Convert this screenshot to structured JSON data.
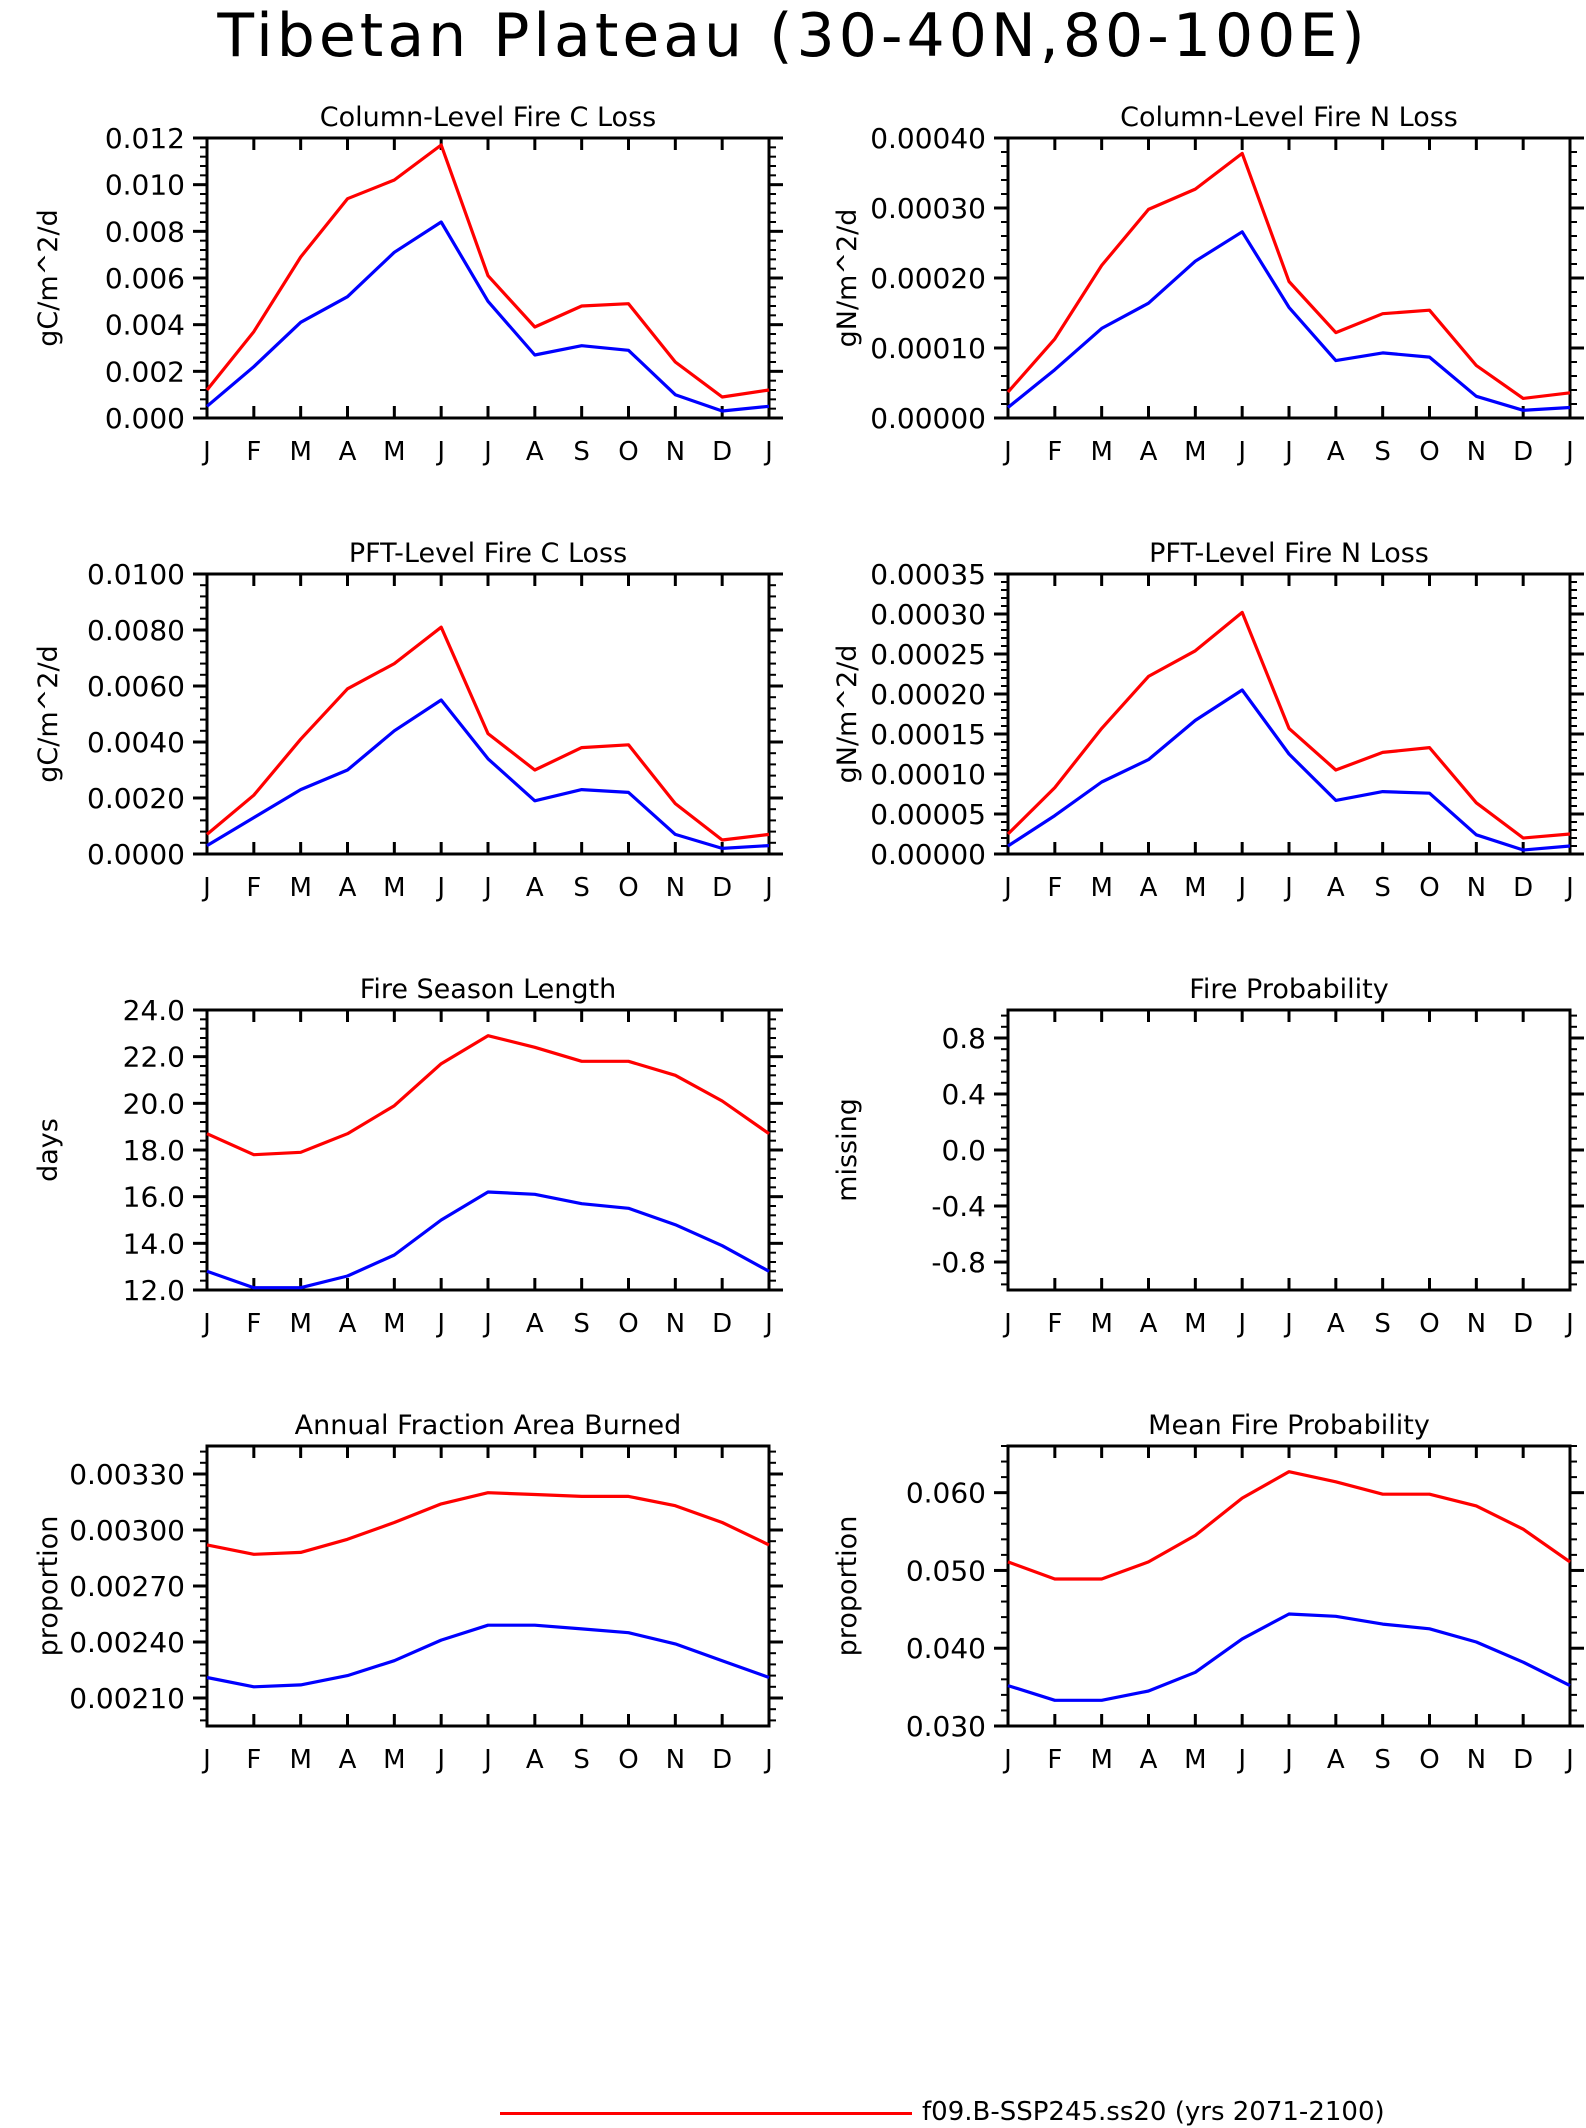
{
  "page_title": "Tibetan Plateau (30-40N,80-100E)",
  "colors": {
    "series_ssp245": "#ff0000",
    "series_second": "#0000ff",
    "axes": "#000000"
  },
  "legend": {
    "entries": [
      {
        "label": "f09.B-SSP245.ss20 (yrs 2071-2100)",
        "color": "#ff0000"
      }
    ]
  },
  "chart_data": [
    {
      "type": "line",
      "title": "Column-Level Fire C Loss",
      "ylabel": "gC/m^2/d",
      "categories": [
        "J",
        "F",
        "M",
        "A",
        "M",
        "J",
        "J",
        "A",
        "S",
        "O",
        "N",
        "D",
        "J"
      ],
      "ylim": [
        0,
        0.012
      ],
      "yticks": [
        "0.000",
        "0.002",
        "0.004",
        "0.006",
        "0.008",
        "0.010",
        "0.012"
      ],
      "yticks_values": [
        0,
        0.002,
        0.004,
        0.006,
        0.008,
        0.01,
        0.012
      ],
      "series": [
        {
          "color": "#ff0000",
          "values": [
            0.0012,
            0.0037,
            0.0069,
            0.0094,
            0.0102,
            0.0117,
            0.0061,
            0.0039,
            0.0048,
            0.0049,
            0.0024,
            0.0009,
            0.0012
          ]
        },
        {
          "color": "#0000ff",
          "values": [
            0.0005,
            0.0022,
            0.0041,
            0.0052,
            0.0071,
            0.0084,
            0.005,
            0.0027,
            0.0031,
            0.0029,
            0.001,
            0.0003,
            0.0005
          ]
        }
      ]
    },
    {
      "type": "line",
      "title": "Column-Level Fire N Loss",
      "ylabel": "gN/m^2/d",
      "categories": [
        "J",
        "F",
        "M",
        "A",
        "M",
        "J",
        "J",
        "A",
        "S",
        "O",
        "N",
        "D",
        "J"
      ],
      "ylim": [
        0,
        0.0004
      ],
      "yticks": [
        "0.00000",
        "0.00010",
        "0.00020",
        "0.00030",
        "0.00040"
      ],
      "yticks_values": [
        0,
        0.0001,
        0.0002,
        0.0003,
        0.0004
      ],
      "series": [
        {
          "color": "#ff0000",
          "values": [
            3.7e-05,
            0.000113,
            0.000218,
            0.000298,
            0.000327,
            0.000378,
            0.000195,
            0.000122,
            0.000149,
            0.000154,
            7.5e-05,
            2.8e-05,
            3.6e-05
          ]
        },
        {
          "color": "#0000ff",
          "values": [
            1.5e-05,
            6.9e-05,
            0.000128,
            0.000164,
            0.000224,
            0.000266,
            0.000158,
            8.2e-05,
            9.3e-05,
            8.7e-05,
            3.1e-05,
            1.1e-05,
            1.5e-05
          ]
        }
      ]
    },
    {
      "type": "line",
      "title": "PFT-Level Fire C Loss",
      "ylabel": "gC/m^2/d",
      "categories": [
        "J",
        "F",
        "M",
        "A",
        "M",
        "J",
        "J",
        "A",
        "S",
        "O",
        "N",
        "D",
        "J"
      ],
      "ylim": [
        0,
        0.01
      ],
      "yticks": [
        "0.0000",
        "0.0020",
        "0.0040",
        "0.0060",
        "0.0080",
        "0.0100"
      ],
      "yticks_values": [
        0,
        0.002,
        0.004,
        0.006,
        0.008,
        0.01
      ],
      "series": [
        {
          "color": "#ff0000",
          "values": [
            0.0007,
            0.0021,
            0.0041,
            0.0059,
            0.0068,
            0.0081,
            0.0043,
            0.003,
            0.0038,
            0.0039,
            0.0018,
            0.0005,
            0.0007
          ]
        },
        {
          "color": "#0000ff",
          "values": [
            0.0003,
            0.0013,
            0.0023,
            0.003,
            0.0044,
            0.0055,
            0.0034,
            0.0019,
            0.0023,
            0.0022,
            0.0007,
            0.0002,
            0.0003
          ]
        }
      ]
    },
    {
      "type": "line",
      "title": "PFT-Level Fire N Loss",
      "ylabel": "gN/m^2/d",
      "categories": [
        "J",
        "F",
        "M",
        "A",
        "M",
        "J",
        "J",
        "A",
        "S",
        "O",
        "N",
        "D",
        "J"
      ],
      "ylim": [
        0,
        0.00035
      ],
      "yticks": [
        "0.00000",
        "0.00005",
        "0.00010",
        "0.00015",
        "0.00020",
        "0.00025",
        "0.00030",
        "0.00035"
      ],
      "yticks_values": [
        0,
        5e-05,
        0.0001,
        0.00015,
        0.0002,
        0.00025,
        0.0003,
        0.00035
      ],
      "series": [
        {
          "color": "#ff0000",
          "values": [
            2.5e-05,
            8.3e-05,
            0.000157,
            0.000222,
            0.000254,
            0.000302,
            0.000157,
            0.000105,
            0.000127,
            0.000133,
            6.4e-05,
            2e-05,
            2.5e-05
          ]
        },
        {
          "color": "#0000ff",
          "values": [
            1e-05,
            4.8e-05,
            9e-05,
            0.000118,
            0.000167,
            0.000205,
            0.000125,
            6.7e-05,
            7.8e-05,
            7.6e-05,
            2.4e-05,
            5e-06,
            1e-05
          ]
        }
      ]
    },
    {
      "type": "line",
      "title": "Fire Season Length",
      "ylabel": "days",
      "categories": [
        "J",
        "F",
        "M",
        "A",
        "M",
        "J",
        "J",
        "A",
        "S",
        "O",
        "N",
        "D",
        "J"
      ],
      "ylim": [
        12,
        24
      ],
      "yticks": [
        "12.0",
        "14.0",
        "16.0",
        "18.0",
        "20.0",
        "22.0",
        "24.0"
      ],
      "yticks_values": [
        12,
        14,
        16,
        18,
        20,
        22,
        24
      ],
      "series": [
        {
          "color": "#ff0000",
          "values": [
            18.7,
            17.8,
            17.9,
            18.7,
            19.9,
            21.7,
            22.9,
            22.4,
            21.8,
            21.8,
            21.2,
            20.1,
            18.7
          ]
        },
        {
          "color": "#0000ff",
          "values": [
            12.8,
            12.1,
            12.1,
            12.6,
            13.5,
            15.0,
            16.2,
            16.1,
            15.7,
            15.5,
            14.8,
            13.9,
            12.8
          ]
        }
      ]
    },
    {
      "type": "line",
      "title": "Fire Probability",
      "ylabel": "missing",
      "categories": [
        "J",
        "F",
        "M",
        "A",
        "M",
        "J",
        "J",
        "A",
        "S",
        "O",
        "N",
        "D",
        "J"
      ],
      "ylim": [
        -1,
        1
      ],
      "yticks": [
        "-0.8",
        "-0.4",
        "0.0",
        "0.4",
        "0.8"
      ],
      "yticks_values": [
        -0.8,
        -0.4,
        0.0,
        0.4,
        0.8
      ],
      "series": []
    },
    {
      "type": "line",
      "title": "Annual Fraction Area Burned",
      "ylabel": "proportion",
      "categories": [
        "J",
        "F",
        "M",
        "A",
        "M",
        "J",
        "J",
        "A",
        "S",
        "O",
        "N",
        "D",
        "J"
      ],
      "ylim": [
        0.00195,
        0.00345
      ],
      "yticks": [
        "0.00210",
        "0.00240",
        "0.00270",
        "0.00300",
        "0.00330"
      ],
      "yticks_values": [
        0.0021,
        0.0024,
        0.0027,
        0.003,
        0.0033
      ],
      "series": [
        {
          "color": "#ff0000",
          "values": [
            0.00292,
            0.00287,
            0.00288,
            0.00295,
            0.00304,
            0.00314,
            0.0032,
            0.00319,
            0.00318,
            0.00318,
            0.00313,
            0.00304,
            0.00292
          ]
        },
        {
          "color": "#0000ff",
          "values": [
            0.00221,
            0.00216,
            0.00217,
            0.00222,
            0.0023,
            0.00241,
            0.00249,
            0.00249,
            0.00247,
            0.00245,
            0.00239,
            0.0023,
            0.00221
          ]
        }
      ]
    },
    {
      "type": "line",
      "title": "Mean Fire Probability",
      "ylabel": "proportion",
      "categories": [
        "J",
        "F",
        "M",
        "A",
        "M",
        "J",
        "J",
        "A",
        "S",
        "O",
        "N",
        "D",
        "J"
      ],
      "ylim": [
        0.03,
        0.066
      ],
      "yticks": [
        "0.030",
        "0.040",
        "0.050",
        "0.060"
      ],
      "yticks_values": [
        0.03,
        0.04,
        0.05,
        0.06
      ],
      "series": [
        {
          "color": "#ff0000",
          "values": [
            0.0511,
            0.0489,
            0.0489,
            0.0511,
            0.0545,
            0.0593,
            0.0627,
            0.0614,
            0.0598,
            0.0598,
            0.0583,
            0.0553,
            0.0511
          ]
        },
        {
          "color": "#0000ff",
          "values": [
            0.0352,
            0.0333,
            0.0333,
            0.0345,
            0.0369,
            0.0412,
            0.0444,
            0.0441,
            0.0431,
            0.0425,
            0.0408,
            0.0382,
            0.0352
          ]
        }
      ]
    }
  ]
}
